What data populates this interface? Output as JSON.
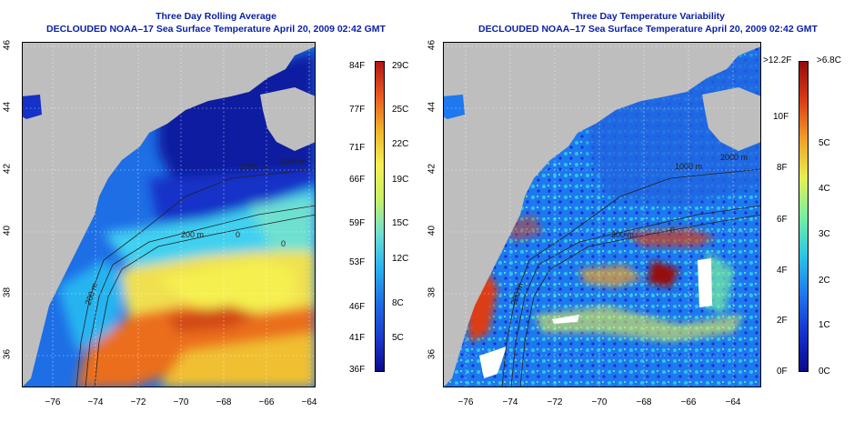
{
  "left_panel": {
    "title": "Three Day Rolling Average",
    "subtitle": "DECLOUDED NOAA–17 Sea Surface Temperature April 20, 2009 02:42 GMT",
    "colorbar_fahrenheit": [
      "84F",
      "77F",
      "71F",
      "66F",
      "59F",
      "53F",
      "46F",
      "41F",
      "36F"
    ],
    "colorbar_celsius": [
      "29C",
      "25C",
      "22C",
      "19C",
      "15C",
      "12C",
      "8C",
      "5C"
    ],
    "contour_labels": [
      "200 m",
      "1000 m",
      "2000 m",
      "200 m",
      "0",
      "0"
    ]
  },
  "right_panel": {
    "title": "Three Day Temperature Variability",
    "subtitle": "DECLOUDED NOAA–17 Sea Surface Temperature April 20, 2009 02:42 GMT",
    "colorbar_fahrenheit": [
      ">12.2F",
      "10F",
      "8F",
      "6F",
      "4F",
      "2F",
      "0F"
    ],
    "colorbar_celsius": [
      ">6.8C",
      "5C",
      "4C",
      "3C",
      "2C",
      "1C",
      "0C"
    ],
    "contour_labels": [
      "200 m",
      "1000 m",
      "2000 m",
      "200 m",
      "0"
    ]
  },
  "axes": {
    "latitude_ticks": [
      "46",
      "44",
      "42",
      "40",
      "38",
      "36"
    ],
    "longitude_ticks": [
      "−76",
      "−74",
      "−72",
      "−70",
      "−68",
      "−66",
      "−64"
    ]
  },
  "colors": {
    "title_blue": "#0b21a6",
    "land_gray": "#bebebe",
    "sst_scale": [
      "#0a0a8c",
      "#1a3cd2",
      "#1e6ee6",
      "#28b4f0",
      "#6ee0d2",
      "#c8f064",
      "#f5f050",
      "#f0b428",
      "#eb5a1e",
      "#b41414"
    ],
    "variability_scale": [
      "#0a0a8c",
      "#1432d2",
      "#1e78f0",
      "#28c8e6",
      "#78f0a0",
      "#e6f050",
      "#f0a028",
      "#dc3c14",
      "#960a0a"
    ]
  }
}
